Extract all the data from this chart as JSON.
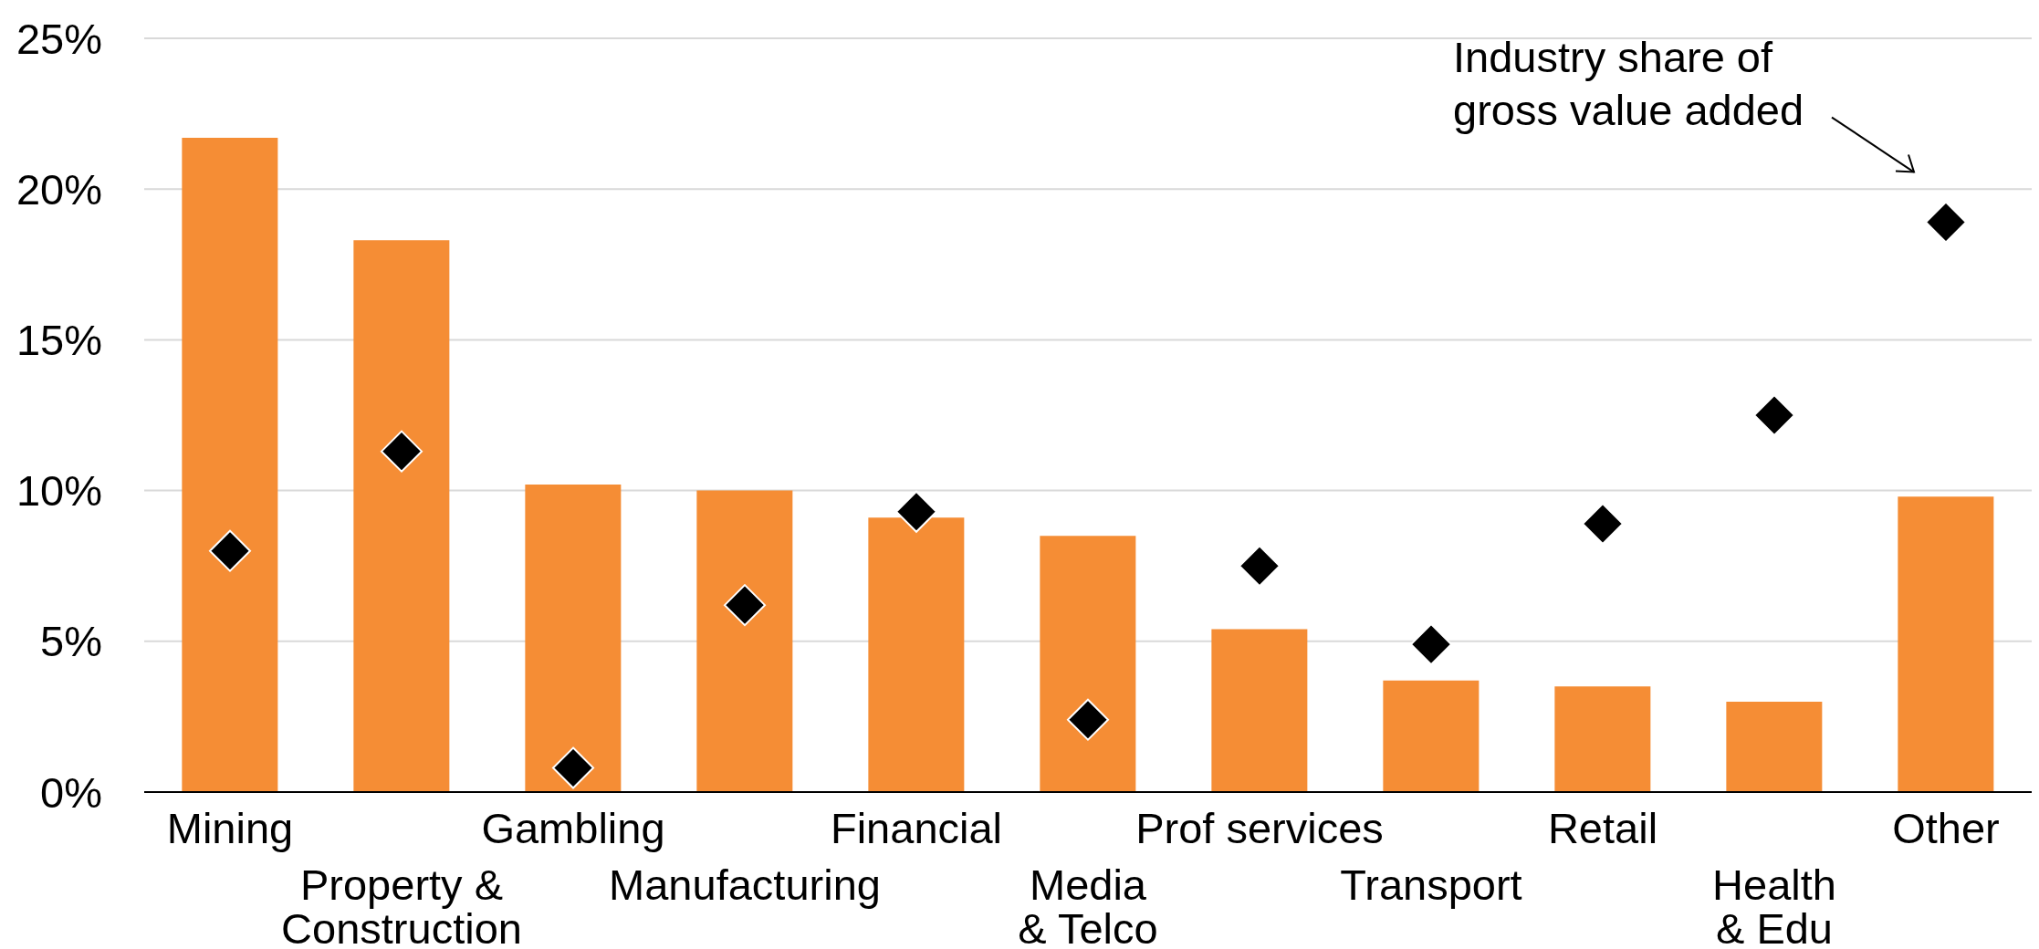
{
  "chart_data": {
    "type": "bar",
    "categories": [
      "Mining",
      "Property &\nConstruction",
      "Gambling",
      "Manufacturing",
      "Financial",
      "Media\n& Telco",
      "Prof services",
      "Transport",
      "Retail",
      "Health\n& Edu",
      "Other"
    ],
    "series": [
      {
        "color": "#f58d35",
        "values": [
          21.7,
          18.3,
          10.2,
          10.0,
          9.1,
          8.5,
          5.4,
          3.7,
          3.5,
          3.0,
          9.8
        ]
      },
      {
        "type": "scatter",
        "color": "#000000",
        "values": [
          8.0,
          11.3,
          0.8,
          6.2,
          9.3,
          2.4,
          7.5,
          4.9,
          8.9,
          12.5,
          18.9
        ]
      }
    ],
    "marker": "diamond",
    "ylim": [
      0,
      25
    ],
    "yticks": [
      {
        "value": 0,
        "label": "0%"
      },
      {
        "value": 5,
        "label": "5%"
      },
      {
        "value": 10,
        "label": "10%"
      },
      {
        "value": 15,
        "label": "15%"
      },
      {
        "value": 20,
        "label": "20%"
      },
      {
        "value": 25,
        "label": "25%"
      }
    ],
    "grid": "y",
    "annotations": [
      "Industry share of\ngross value added"
    ]
  }
}
